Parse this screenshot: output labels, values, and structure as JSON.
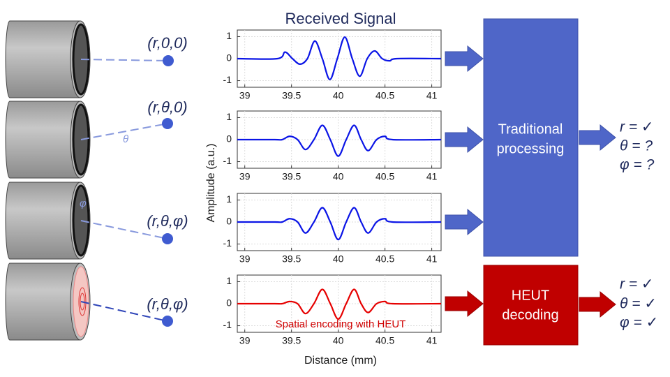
{
  "transducers": [
    {
      "label": "(r,0,0)"
    },
    {
      "label": "(r,θ,0)",
      "angle_label": "θ"
    },
    {
      "label": "(r,θ,φ)",
      "angle_label": "φ"
    },
    {
      "label": "(r,θ,φ)"
    }
  ],
  "chart_data": [
    {
      "type": "line",
      "title": "Received Signal",
      "ylabel": "Amplitude (a.u.)",
      "x": [
        38.92,
        39.35,
        39.43,
        39.51,
        39.59,
        39.67,
        39.75,
        39.83,
        39.91,
        39.99,
        40.07,
        40.15,
        40.23,
        40.31,
        40.39,
        40.47,
        40.55,
        40.63,
        41.1
      ],
      "values": [
        0,
        0,
        0.3,
        0,
        -0.25,
        0,
        0.8,
        0,
        -0.95,
        0,
        0.98,
        0,
        -0.8,
        0,
        0.35,
        0,
        -0.1,
        0,
        0
      ],
      "color": "#0a14e6",
      "xlim": [
        38.92,
        41.1
      ],
      "ylim": [
        -1.3,
        1.3
      ],
      "xticks": [
        39,
        39.5,
        40,
        40.5,
        41
      ],
      "yticks": [
        -1,
        0,
        1
      ],
      "grid": true
    },
    {
      "type": "line",
      "x": [
        38.92,
        39.32,
        39.4,
        39.48,
        39.565,
        39.65,
        39.74,
        39.83,
        39.915,
        40.0,
        40.085,
        40.17,
        40.245,
        40.32,
        40.41,
        40.5,
        40.58,
        41.1
      ],
      "values": [
        0,
        0,
        0,
        0.15,
        0,
        -0.45,
        0,
        0.65,
        0,
        -0.75,
        0,
        0.65,
        0,
        -0.5,
        0,
        0.15,
        0,
        0
      ],
      "color": "#0a14e6",
      "xlim": [
        38.92,
        41.1
      ],
      "ylim": [
        -1.3,
        1.3
      ],
      "xticks": [
        39,
        39.5,
        40,
        40.5,
        41
      ],
      "yticks": [
        -1,
        0,
        1
      ],
      "grid": true
    },
    {
      "type": "line",
      "x": [
        38.92,
        39.32,
        39.4,
        39.48,
        39.565,
        39.65,
        39.74,
        39.83,
        39.915,
        40.0,
        40.085,
        40.17,
        40.245,
        40.32,
        40.41,
        40.5,
        40.58,
        41.1
      ],
      "values": [
        0,
        0,
        0,
        0.15,
        0,
        -0.5,
        0,
        0.65,
        0,
        -0.8,
        0,
        0.65,
        0,
        -0.5,
        0,
        0.15,
        0,
        0
      ],
      "color": "#0a14e6",
      "xlim": [
        38.92,
        41.1
      ],
      "ylim": [
        -1.3,
        1.3
      ],
      "xticks": [
        39,
        39.5,
        40,
        40.5,
        41
      ],
      "yticks": [
        -1,
        0,
        1
      ],
      "grid": true
    },
    {
      "type": "line",
      "xlabel": "Distance (mm)",
      "annotation": "Spatial encoding with HEUT",
      "x": [
        38.92,
        39.32,
        39.4,
        39.48,
        39.565,
        39.65,
        39.74,
        39.83,
        39.915,
        40.0,
        40.085,
        40.17,
        40.245,
        40.32,
        40.41,
        40.5,
        40.58,
        41.1
      ],
      "values": [
        0,
        0,
        0,
        0.1,
        0,
        -0.45,
        0,
        0.65,
        0,
        -0.7,
        0,
        0.65,
        0,
        -0.4,
        0,
        0.1,
        0,
        0
      ],
      "color": "#e60000",
      "xlim": [
        38.92,
        41.1
      ],
      "ylim": [
        -1.3,
        1.3
      ],
      "xticks": [
        39,
        39.5,
        40,
        40.5,
        41
      ],
      "yticks": [
        -1,
        0,
        1
      ],
      "grid": true
    }
  ],
  "processors": [
    {
      "lines": [
        "Traditional",
        "processing"
      ],
      "results": [
        "r  = ✓",
        "θ = ?",
        "φ = ?"
      ]
    },
    {
      "lines": [
        "HEUT",
        "decoding"
      ],
      "results": [
        "r  = ✓",
        "θ = ✓",
        "φ = ✓"
      ]
    }
  ]
}
